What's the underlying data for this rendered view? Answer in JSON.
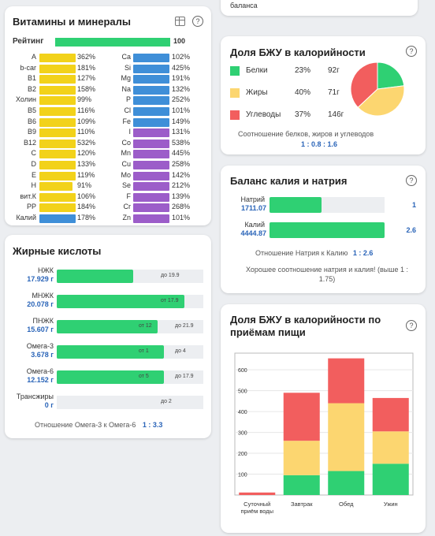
{
  "top_right_card": {
    "text": "баланса"
  },
  "vitamins": {
    "title": "Витамины и минералы",
    "rating_label": "Рейтинг",
    "rating_value": "100",
    "rating_fraction": 1.0,
    "left": [
      {
        "name": "A",
        "pct": "362%",
        "value": 362
      },
      {
        "name": "b-car",
        "pct": "181%",
        "value": 181
      },
      {
        "name": "B1",
        "pct": "127%",
        "value": 127
      },
      {
        "name": "B2",
        "pct": "158%",
        "value": 158
      },
      {
        "name": "Холин",
        "pct": "99%",
        "value": 99
      },
      {
        "name": "B5",
        "pct": "116%",
        "value": 116
      },
      {
        "name": "B6",
        "pct": "109%",
        "value": 109
      },
      {
        "name": "B9",
        "pct": "110%",
        "value": 110
      },
      {
        "name": "B12",
        "pct": "532%",
        "value": 532
      },
      {
        "name": "C",
        "pct": "120%",
        "value": 120
      },
      {
        "name": "D",
        "pct": "133%",
        "value": 133
      },
      {
        "name": "E",
        "pct": "119%",
        "value": 119
      },
      {
        "name": "H",
        "pct": "91%",
        "value": 91
      },
      {
        "name": "вит.К",
        "pct": "106%",
        "value": 106
      },
      {
        "name": "PP",
        "pct": "184%",
        "value": 184
      },
      {
        "name": "Калий",
        "pct": "178%",
        "value": 178
      }
    ],
    "right": [
      {
        "name": "Ca",
        "pct": "102%",
        "value": 102
      },
      {
        "name": "Si",
        "pct": "425%",
        "value": 425
      },
      {
        "name": "Mg",
        "pct": "191%",
        "value": 191
      },
      {
        "name": "Na",
        "pct": "132%",
        "value": 132
      },
      {
        "name": "P",
        "pct": "252%",
        "value": 252
      },
      {
        "name": "Cl",
        "pct": "101%",
        "value": 101
      },
      {
        "name": "Fe",
        "pct": "149%",
        "value": 149
      },
      {
        "name": "I",
        "pct": "131%",
        "value": 131
      },
      {
        "name": "Co",
        "pct": "538%",
        "value": 538
      },
      {
        "name": "Mn",
        "pct": "445%",
        "value": 445
      },
      {
        "name": "Cu",
        "pct": "258%",
        "value": 258
      },
      {
        "name": "Mo",
        "pct": "142%",
        "value": 142
      },
      {
        "name": "Se",
        "pct": "212%",
        "value": 212
      },
      {
        "name": "F",
        "pct": "139%",
        "value": 139
      },
      {
        "name": "Cr",
        "pct": "268%",
        "value": 268
      },
      {
        "name": "Zn",
        "pct": "101%",
        "value": 101
      }
    ],
    "colors": {
      "vitamin": "#f2d21a",
      "blue": "#3f8fd8",
      "purple": "#9c5dc9"
    }
  },
  "fatty": {
    "title": "Жирные кислоты",
    "rows": [
      {
        "name": "НЖК",
        "value": "17.929 г",
        "fill": 0.52,
        "marker_text": "до 19.9"
      },
      {
        "name": "МНЖК",
        "value": "20.078 г",
        "fill": 0.87,
        "marker_text": "от 17.9"
      },
      {
        "name": "ПНЖК",
        "value": "15.607 г",
        "fill": 0.69,
        "marker_text_1": "от 12",
        "marker_text_2": "до 21.9"
      },
      {
        "name": "Омега-3",
        "value": "3.678 г",
        "fill": 0.73,
        "marker_text_1": "от 1",
        "marker_text_2": "до 4"
      },
      {
        "name": "Омега-6",
        "value": "12.152 г",
        "fill": 0.73,
        "marker_text_1": "от 5",
        "marker_text_2": "до 17.9"
      },
      {
        "name": "Трансжиры",
        "value": "0 г",
        "fill": 0,
        "marker_text": "до 2"
      }
    ],
    "ratio_label": "Отношение Омега-3 к Омега-6",
    "ratio_value": "1 : 3.3"
  },
  "bju": {
    "title": "Доля БЖУ в калорийности",
    "rows": [
      {
        "name": "Белки",
        "pct": "23%",
        "grams": "92г",
        "color": "#2fd073"
      },
      {
        "name": "Жиры",
        "pct": "40%",
        "grams": "71г",
        "color": "#fcd670"
      },
      {
        "name": "Углеводы",
        "pct": "37%",
        "grams": "146г",
        "color": "#f25e5e"
      }
    ],
    "ratio_label": "Соотношение белков, жиров и углеводов",
    "ratio_value": "1 : 0.8 : 1.6"
  },
  "kna": {
    "title": "Баланс калия и натрия",
    "rows": [
      {
        "name": "Натрий",
        "value": "1711.07",
        "ratio": "1",
        "fill": 0.45
      },
      {
        "name": "Калий",
        "value": "4444.87",
        "ratio": "2.6",
        "fill": 1.0
      }
    ],
    "ratio_label": "Отношение Натрия к Калию",
    "ratio_value": "1 : 2.6",
    "note": "Хорошее соотношение натрия и калия! (выше 1 : 1.75)"
  },
  "meals_chart": {
    "title_line1": "Доля БЖУ в калорийности по",
    "title_line2": "приёмам пищи"
  },
  "chart_data": {
    "type": "bar",
    "stacked": true,
    "categories": [
      "Суточный приём воды",
      "Завтрак",
      "Обед",
      "Ужин"
    ],
    "category_lines": [
      [
        "Суточный",
        "приём воды"
      ],
      [
        "Завтрак"
      ],
      [
        "Обед"
      ],
      [
        "Ужин"
      ]
    ],
    "series": [
      {
        "values": [
          0,
          95,
          115,
          150
        ],
        "color": "#2fd073"
      },
      {
        "values": [
          0,
          165,
          325,
          155
        ],
        "color": "#fcd670"
      },
      {
        "values": [
          12,
          230,
          215,
          160
        ],
        "color": "#f25e5e"
      }
    ],
    "ylim": [
      0,
      680
    ],
    "yticks": [
      100,
      200,
      300,
      400,
      500,
      600
    ],
    "grid": true
  }
}
